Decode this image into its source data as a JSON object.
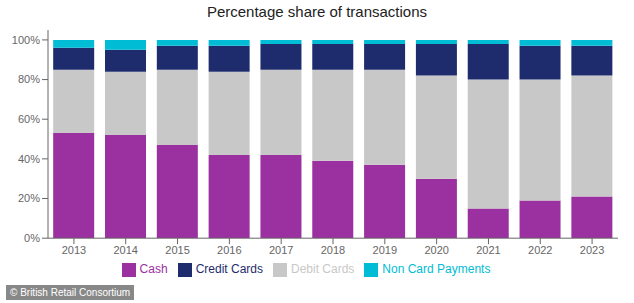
{
  "chart_data": {
    "type": "bar",
    "title": "Percentage share of transactions",
    "categories": [
      "2013",
      "2014",
      "2015",
      "2016",
      "2017",
      "2018",
      "2019",
      "2020",
      "2021",
      "2022",
      "2023"
    ],
    "series": [
      {
        "name": "Cash",
        "color": "#9b30a0",
        "values": [
          53,
          52,
          47,
          42,
          42,
          39,
          37,
          30,
          15,
          19,
          21
        ]
      },
      {
        "name": "Debit Cards",
        "color": "#c8c8c8",
        "values": [
          32,
          32,
          38,
          42,
          43,
          46,
          48,
          52,
          65,
          61,
          61
        ]
      },
      {
        "name": "Credit Cards",
        "color": "#1e2c6e",
        "values": [
          11,
          11,
          12,
          13,
          13,
          13,
          13,
          16,
          18,
          17,
          15
        ]
      },
      {
        "name": "Non Card Payments",
        "color": "#00bcd4",
        "values": [
          4,
          5,
          3,
          3,
          2,
          2,
          2,
          2,
          2,
          3,
          3
        ]
      }
    ],
    "stacked": true,
    "ylim": [
      0,
      105
    ],
    "yticks": [
      {
        "value": 0,
        "label": "0%"
      },
      {
        "value": 20,
        "label": "20%"
      },
      {
        "value": 40,
        "label": "40%"
      },
      {
        "value": 60,
        "label": "60%"
      },
      {
        "value": 80,
        "label": "80%"
      },
      {
        "value": 100,
        "label": "100%"
      }
    ],
    "grid": false,
    "legend": "bottom",
    "annotations": [
      "© British Retail Consortium"
    ]
  }
}
